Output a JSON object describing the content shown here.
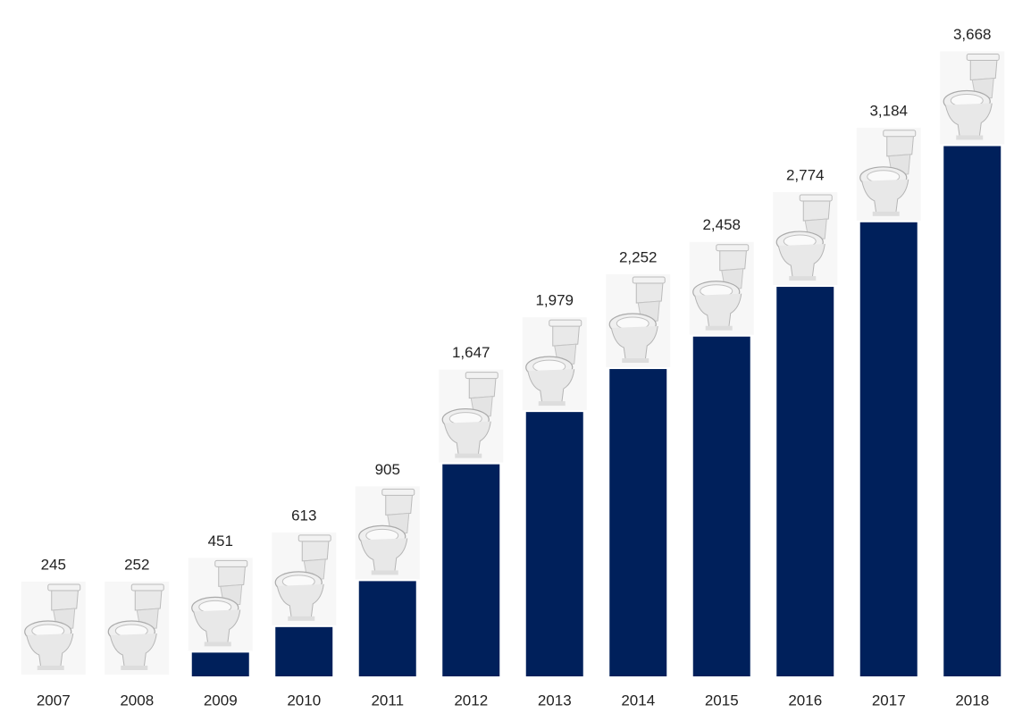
{
  "chart_data": {
    "type": "bar",
    "categories": [
      "2007",
      "2008",
      "2009",
      "2010",
      "2011",
      "2012",
      "2013",
      "2014",
      "2015",
      "2016",
      "2017",
      "2018"
    ],
    "values": [
      245,
      252,
      451,
      613,
      905,
      1647,
      1979,
      2252,
      2458,
      2774,
      3184,
      3668
    ],
    "value_labels": [
      "245",
      "252",
      "451",
      "613",
      "905",
      "1,647",
      "1,979",
      "2,252",
      "2,458",
      "2,774",
      "3,184",
      "3,668"
    ],
    "color": "#00205b",
    "ylim": [
      300,
      4000
    ]
  }
}
